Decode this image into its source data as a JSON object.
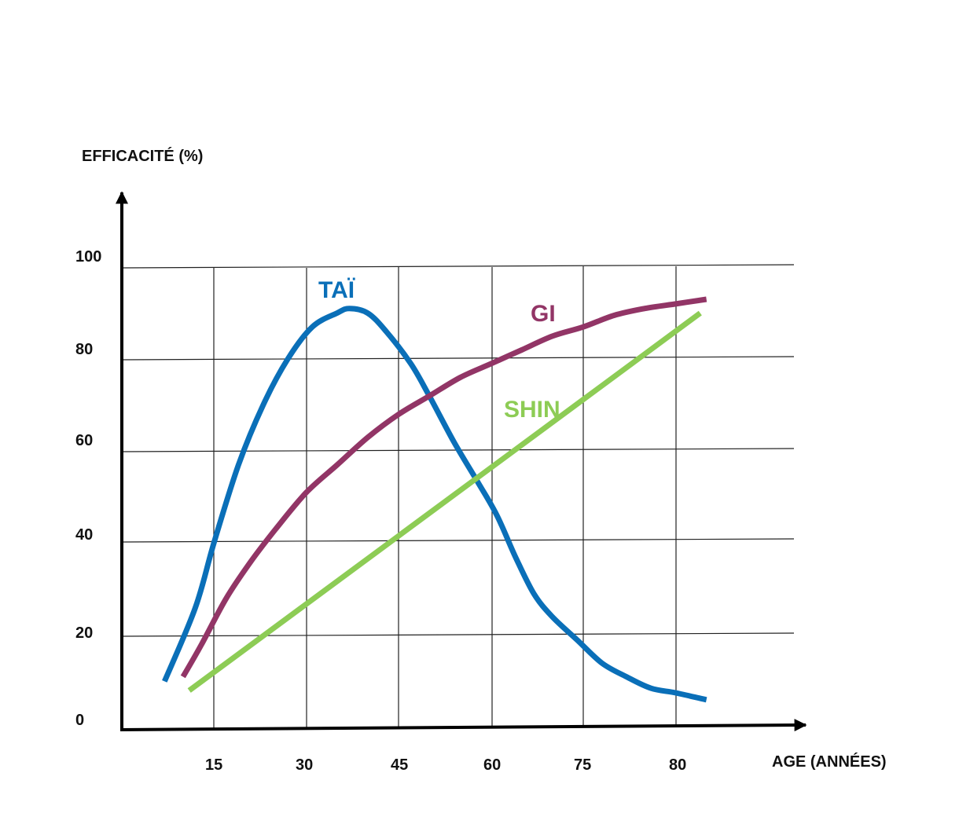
{
  "chart_data": {
    "type": "line",
    "xlabel": "AGE (ANNÉES)",
    "ylabel": "EFFICACITÉ (%)",
    "x_tick_labels": [
      "15",
      "30",
      "45",
      "60",
      "75",
      "80"
    ],
    "y_tick_labels": [
      "0",
      "20",
      "40",
      "60",
      "80",
      "100"
    ],
    "ylim": [
      0,
      100
    ],
    "grid": true,
    "series": [
      {
        "name": "TAÏ",
        "color": "#0a6fb8",
        "points": [
          [
            7,
            10
          ],
          [
            12,
            26
          ],
          [
            15,
            40
          ],
          [
            19,
            57
          ],
          [
            23,
            70
          ],
          [
            27,
            80
          ],
          [
            31,
            87
          ],
          [
            35,
            90
          ],
          [
            37,
            91
          ],
          [
            40,
            90
          ],
          [
            43,
            86
          ],
          [
            47,
            79
          ],
          [
            50,
            72
          ],
          [
            54,
            62
          ],
          [
            58,
            53
          ],
          [
            61,
            46
          ],
          [
            64,
            37
          ],
          [
            67,
            29
          ],
          [
            70,
            24
          ],
          [
            74,
            19
          ],
          [
            78,
            14
          ],
          [
            82,
            11
          ],
          [
            86,
            8.5
          ],
          [
            90,
            7.5
          ],
          [
            95,
            6
          ]
        ]
      },
      {
        "name": "GI",
        "color": "#923566",
        "points": [
          [
            10,
            11
          ],
          [
            13,
            18
          ],
          [
            17,
            28
          ],
          [
            21,
            36
          ],
          [
            25,
            43
          ],
          [
            30,
            51
          ],
          [
            35,
            57
          ],
          [
            40,
            63
          ],
          [
            45,
            68
          ],
          [
            50,
            72
          ],
          [
            55,
            76
          ],
          [
            60,
            79
          ],
          [
            65,
            82
          ],
          [
            70,
            85
          ],
          [
            75,
            87
          ],
          [
            80,
            89.5
          ],
          [
            85,
            91
          ],
          [
            90,
            92
          ],
          [
            95,
            93
          ]
        ]
      },
      {
        "name": "SHIN",
        "color": "#8dcc55",
        "points": [
          [
            11,
            8
          ],
          [
            94,
            90
          ]
        ]
      }
    ]
  }
}
